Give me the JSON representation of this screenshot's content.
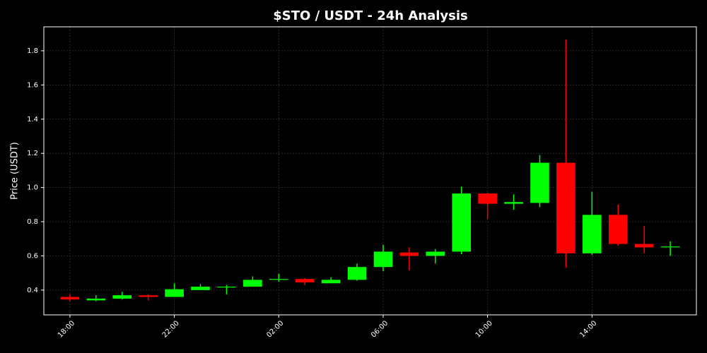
{
  "chart_data": {
    "type": "candlestick",
    "title": "$STO / USDT - 24h Analysis",
    "ylabel": "Price (USDT)",
    "categories": [
      "18:00",
      null,
      null,
      null,
      "22:00",
      null,
      null,
      null,
      "02:00",
      null,
      null,
      null,
      "06:00",
      null,
      null,
      null,
      "10:00",
      null,
      null,
      null,
      "14:00",
      null,
      null,
      null
    ],
    "open": [
      0.36,
      0.34,
      0.35,
      0.37,
      0.36,
      0.4,
      0.415,
      0.42,
      0.46,
      0.465,
      0.44,
      0.46,
      0.535,
      0.62,
      0.6,
      0.625,
      0.965,
      0.905,
      0.91,
      1.145,
      0.615,
      0.84,
      0.67,
      0.65
    ],
    "high": [
      0.375,
      0.37,
      0.39,
      0.375,
      0.44,
      0.435,
      0.43,
      0.48,
      0.495,
      0.47,
      0.475,
      0.555,
      0.665,
      0.65,
      0.64,
      1.005,
      0.97,
      0.96,
      1.19,
      1.865,
      0.975,
      0.9,
      0.775,
      0.685
    ],
    "low": [
      0.335,
      0.335,
      0.345,
      0.34,
      0.36,
      0.4,
      0.375,
      0.42,
      0.45,
      0.43,
      0.44,
      0.455,
      0.51,
      0.515,
      0.555,
      0.61,
      0.815,
      0.87,
      0.885,
      0.53,
      0.605,
      0.66,
      0.615,
      0.6
    ],
    "close": [
      0.345,
      0.35,
      0.37,
      0.36,
      0.405,
      0.42,
      0.42,
      0.46,
      0.465,
      0.445,
      0.46,
      0.535,
      0.625,
      0.6,
      0.625,
      0.965,
      0.905,
      0.915,
      1.145,
      0.615,
      0.84,
      0.67,
      0.65,
      0.655
    ],
    "up_color": "#00ff00",
    "down_color": "#ff0000",
    "ylim": [
      0.255,
      1.94
    ],
    "yticks": [
      0.4,
      0.6,
      0.8,
      {
        "value": 1,
        "label": "1.0"
      },
      1.2,
      1.4,
      1.6,
      1.8
    ],
    "grid": true
  }
}
